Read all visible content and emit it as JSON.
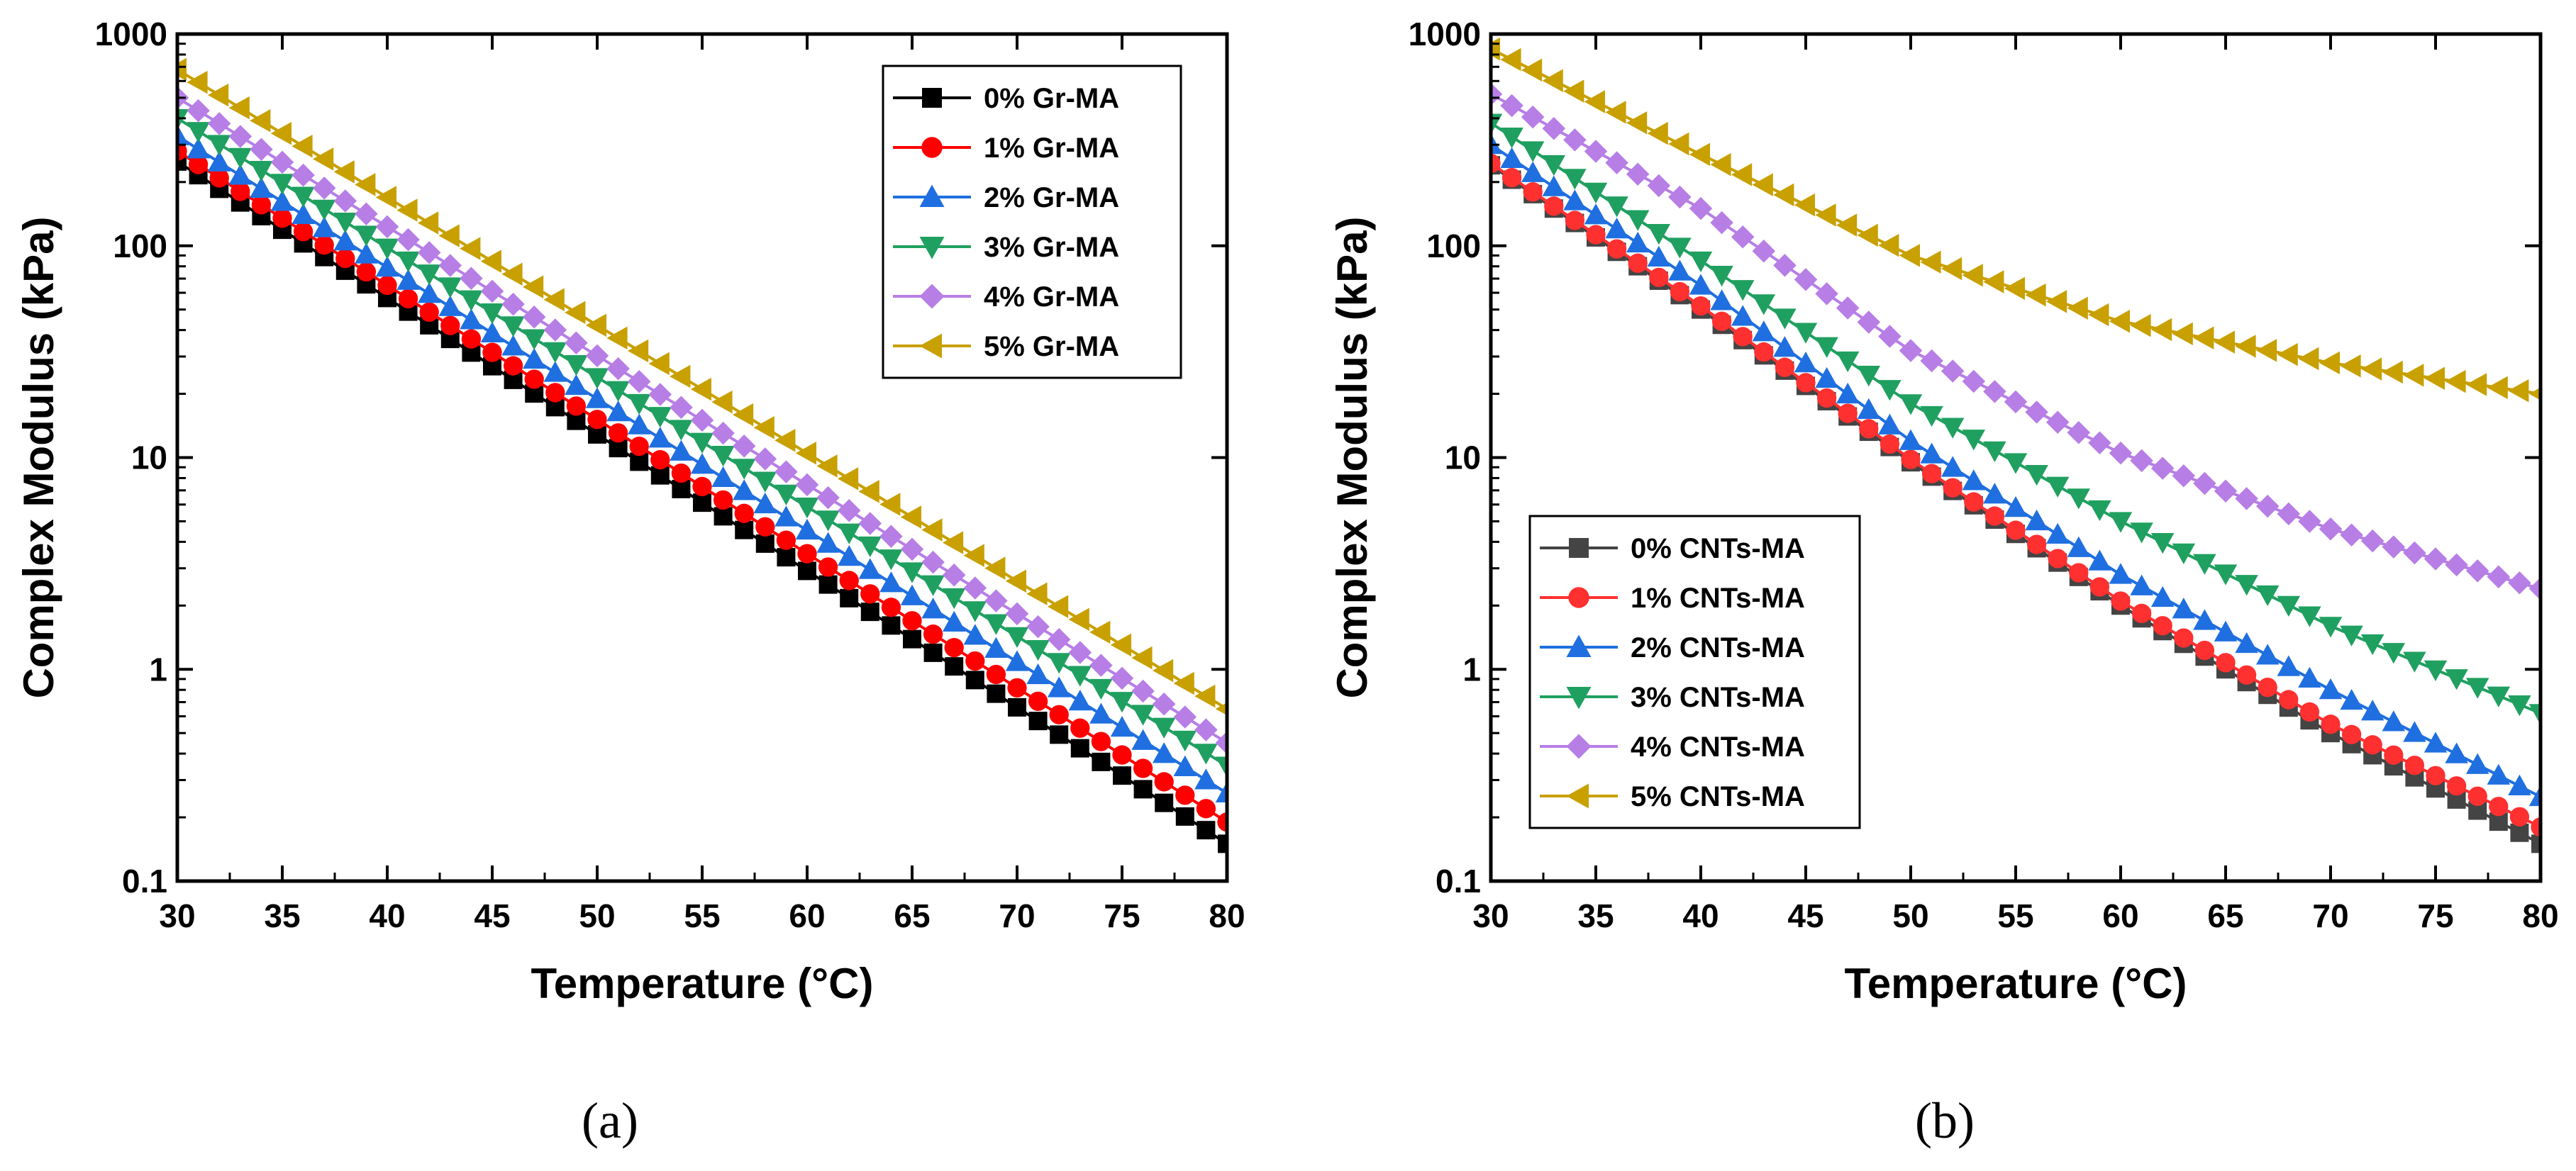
{
  "chart_data": [
    {
      "type": "line",
      "panel": "a",
      "caption": "(a)",
      "xlabel": "Temperature (°C)",
      "ylabel": "Complex Modulus (kPa)",
      "xlim": [
        30,
        80
      ],
      "ylim": [
        0.1,
        1000
      ],
      "yscale": "log",
      "x_ticks": [
        "30",
        "35",
        "40",
        "45",
        "50",
        "55",
        "60",
        "65",
        "70",
        "75",
        "80"
      ],
      "y_ticks": [
        "0.1",
        "1",
        "10",
        "100",
        "1000"
      ],
      "legend_position": "top-right",
      "x_range_points": [
        30,
        80,
        51
      ],
      "series": [
        {
          "name": "0% Gr-MA",
          "color": "#000000",
          "marker": "square",
          "values": {
            "30": 250,
            "80": 0.15
          }
        },
        {
          "name": "1% Gr-MA",
          "color": "#ff0000",
          "marker": "circle",
          "values": {
            "30": 280,
            "80": 0.19
          }
        },
        {
          "name": "2% Gr-MA",
          "color": "#1f6fe0",
          "marker": "triangle-up",
          "values": {
            "30": 330,
            "80": 0.26
          }
        },
        {
          "name": "3% Gr-MA",
          "color": "#20a060",
          "marker": "triangle-down",
          "values": {
            "30": 400,
            "80": 0.35
          }
        },
        {
          "name": "4% Gr-MA",
          "color": "#b77ee6",
          "marker": "diamond",
          "values": {
            "30": 500,
            "80": 0.45
          }
        },
        {
          "name": "5% Gr-MA",
          "color": "#c8a000",
          "marker": "triangle-left",
          "values": {
            "30": 680,
            "80": 0.65
          }
        }
      ]
    },
    {
      "type": "line",
      "panel": "b",
      "caption": "(b)",
      "xlabel": "Temperature (°C)",
      "ylabel": "Complex Modulus (kPa)",
      "xlim": [
        30,
        80
      ],
      "ylim": [
        0.1,
        1000
      ],
      "yscale": "log",
      "x_ticks": [
        "30",
        "35",
        "40",
        "45",
        "50",
        "55",
        "60",
        "65",
        "70",
        "75",
        "80"
      ],
      "y_ticks": [
        "0.1",
        "1",
        "10",
        "100",
        "1000"
      ],
      "legend_position": "bottom-left",
      "x_range_points": [
        30,
        80,
        51
      ],
      "series": [
        {
          "name": "0% CNTs-MA",
          "color": "#444444",
          "marker": "square",
          "values": {
            "30": 240,
            "40": 50,
            "50": 9.5,
            "60": 2.0,
            "70": 0.5,
            "80": 0.15
          }
        },
        {
          "name": "1% CNTs-MA",
          "color": "#ff3030",
          "marker": "circle",
          "values": {
            "30": 245,
            "40": 52,
            "50": 9.8,
            "60": 2.1,
            "70": 0.55,
            "80": 0.18
          }
        },
        {
          "name": "2% CNTs-MA",
          "color": "#1f6fe0",
          "marker": "triangle-up",
          "values": {
            "30": 300,
            "40": 65,
            "50": 12,
            "60": 2.8,
            "70": 0.8,
            "80": 0.25
          }
        },
        {
          "name": "3% CNTs-MA",
          "color": "#20a060",
          "marker": "triangle-down",
          "values": {
            "30": 380,
            "40": 85,
            "50": 18,
            "60": 5,
            "70": 1.6,
            "80": 0.62
          }
        },
        {
          "name": "4% CNTs-MA",
          "color": "#b77ee6",
          "marker": "diamond",
          "values": {
            "30": 520,
            "40": 150,
            "50": 32,
            "60": 10.5,
            "70": 4.6,
            "80": 2.4
          }
        },
        {
          "name": "5% CNTs-MA",
          "color": "#c8a000",
          "marker": "triangle-left",
          "values": {
            "30": 850,
            "40": 270,
            "50": 90,
            "60": 44,
            "70": 28,
            "80": 20
          }
        }
      ]
    }
  ]
}
